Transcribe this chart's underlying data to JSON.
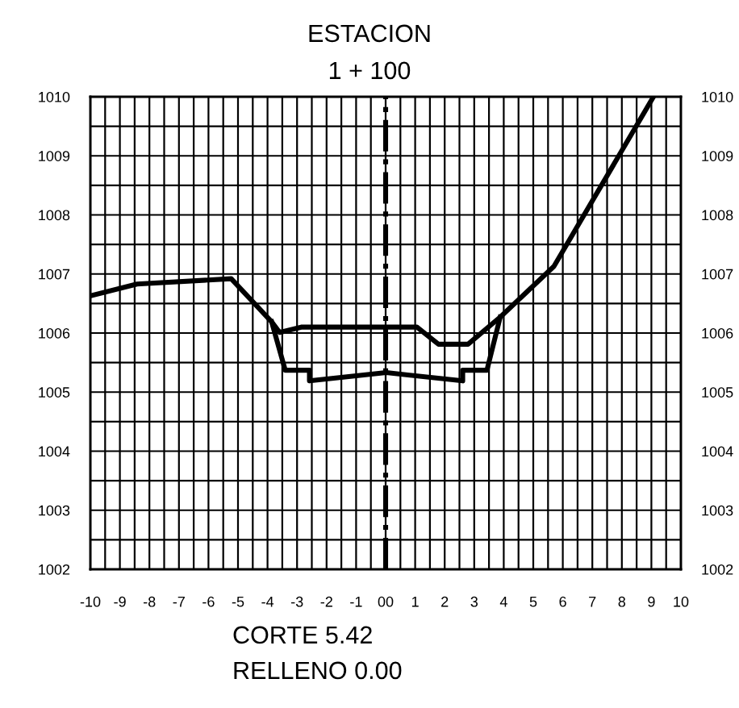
{
  "chart_data": {
    "type": "line",
    "title": "ESTACION",
    "subtitle": "1 + 100",
    "annotations": [
      "CORTE 5.42",
      "RELLENO 0.00"
    ],
    "series": [
      {
        "color": "#000000",
        "x": [
          -10,
          -8.42,
          -5.23,
          -3.86,
          -3.59,
          -2.86,
          1.06,
          1.79,
          2.79,
          3.88,
          5.7,
          9.07
        ],
        "values": [
          1006.63,
          1006.83,
          1006.92,
          1006.19,
          1006.01,
          1006.1,
          1006.1,
          1005.81,
          1005.81,
          1006.27,
          1007.13,
          1010
        ]
      },
      {
        "color": "#000000",
        "x": [
          -3.86,
          -3.4,
          -2.58,
          -2.58,
          0.02,
          2.61,
          2.61,
          3.43,
          3.88
        ],
        "values": [
          1006.19,
          1005.37,
          1005.37,
          1005.19,
          1005.33,
          1005.19,
          1005.37,
          1005.37,
          1006.27
        ]
      }
    ],
    "ref_lines": [
      {
        "axis": "x",
        "value": 0,
        "color": "#000000",
        "line_style": "dashdot"
      }
    ],
    "xlim": [
      -10,
      10
    ],
    "xticks": [
      -10,
      {
        "value": -9.5,
        "label": null
      },
      -9,
      {
        "value": -8.5,
        "label": null
      },
      -8,
      {
        "value": -7.5,
        "label": null
      },
      -7,
      {
        "value": -6.5,
        "label": null
      },
      -6,
      {
        "value": -5.5,
        "label": null
      },
      -5,
      {
        "value": -4.5,
        "label": null
      },
      -4,
      {
        "value": -3.5,
        "label": null
      },
      -3,
      {
        "value": -2.5,
        "label": null
      },
      -2,
      {
        "value": -1.5,
        "label": null
      },
      -1,
      {
        "value": -0.5,
        "label": null
      },
      {
        "value": 0,
        "label": "00"
      },
      {
        "value": 0.5,
        "label": null
      },
      1,
      {
        "value": 1.5,
        "label": null
      },
      2,
      {
        "value": 2.5,
        "label": null
      },
      3,
      {
        "value": 3.5,
        "label": null
      },
      4,
      {
        "value": 4.5,
        "label": null
      },
      5,
      {
        "value": 5.5,
        "label": null
      },
      6,
      {
        "value": 6.5,
        "label": null
      },
      7,
      {
        "value": 7.5,
        "label": null
      },
      8,
      {
        "value": 8.5,
        "label": null
      },
      9,
      {
        "value": 9.5,
        "label": null
      },
      10
    ],
    "ylim": [
      1002,
      1010
    ],
    "yticks": [
      1002,
      {
        "value": 1002.5,
        "label": null
      },
      1003,
      {
        "value": 1003.5,
        "label": null
      },
      1004,
      {
        "value": 1004.5,
        "label": null
      },
      1005,
      {
        "value": 1005.5,
        "label": null
      },
      1006,
      {
        "value": 1006.5,
        "label": null
      },
      1007,
      {
        "value": 1007.5,
        "label": null
      },
      1008,
      {
        "value": 1008.5,
        "label": null
      },
      1009,
      {
        "value": 1009.5,
        "label": null
      },
      1010
    ],
    "y2lim": [
      1002,
      1010
    ],
    "y2ticks": [
      1002,
      1003,
      1004,
      1005,
      1006,
      1007,
      1008,
      1009,
      1010
    ],
    "grid": true,
    "legend": false,
    "marker": "none",
    "line_style": "solid"
  }
}
